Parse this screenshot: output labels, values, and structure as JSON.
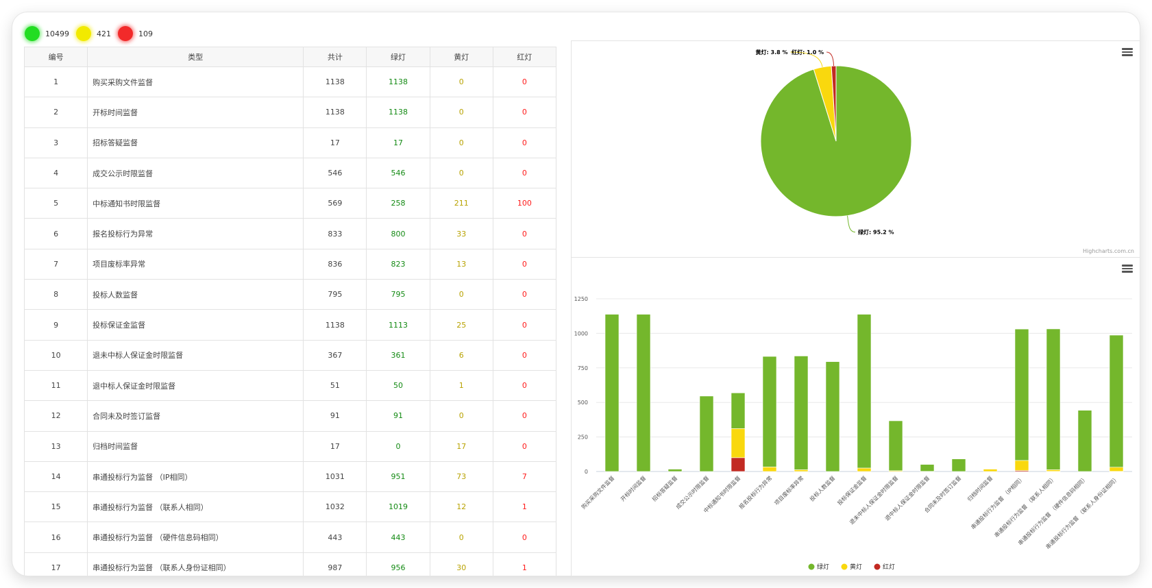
{
  "summary": {
    "green": {
      "count": "10499",
      "color": "#22dd22"
    },
    "yellow": {
      "count": "421",
      "color": "#f2ea00"
    },
    "red": {
      "count": "109",
      "color": "#f22a2a"
    }
  },
  "table": {
    "headers": [
      "编号",
      "类型",
      "共计",
      "绿灯",
      "黄灯",
      "红灯"
    ],
    "rows": [
      {
        "no": "1",
        "type": "购买采购文件监督",
        "total": "1138",
        "green": "1138",
        "yellow": "0",
        "red": "0"
      },
      {
        "no": "2",
        "type": "开标时间监督",
        "total": "1138",
        "green": "1138",
        "yellow": "0",
        "red": "0"
      },
      {
        "no": "3",
        "type": "招标答疑监督",
        "total": "17",
        "green": "17",
        "yellow": "0",
        "red": "0"
      },
      {
        "no": "4",
        "type": "成交公示时限监督",
        "total": "546",
        "green": "546",
        "yellow": "0",
        "red": "0"
      },
      {
        "no": "5",
        "type": "中标通知书时限监督",
        "total": "569",
        "green": "258",
        "yellow": "211",
        "red": "100"
      },
      {
        "no": "6",
        "type": "报名投标行为异常",
        "total": "833",
        "green": "800",
        "yellow": "33",
        "red": "0"
      },
      {
        "no": "7",
        "type": "项目废标率异常",
        "total": "836",
        "green": "823",
        "yellow": "13",
        "red": "0"
      },
      {
        "no": "8",
        "type": "投标人数监督",
        "total": "795",
        "green": "795",
        "yellow": "0",
        "red": "0"
      },
      {
        "no": "9",
        "type": "投标保证金监督",
        "total": "1138",
        "green": "1113",
        "yellow": "25",
        "red": "0"
      },
      {
        "no": "10",
        "type": "退未中标人保证金时限监督",
        "total": "367",
        "green": "361",
        "yellow": "6",
        "red": "0"
      },
      {
        "no": "11",
        "type": "退中标人保证金时限监督",
        "total": "51",
        "green": "50",
        "yellow": "1",
        "red": "0"
      },
      {
        "no": "12",
        "type": "合同未及时签订监督",
        "total": "91",
        "green": "91",
        "yellow": "0",
        "red": "0"
      },
      {
        "no": "13",
        "type": "归档时间监督",
        "total": "17",
        "green": "0",
        "yellow": "17",
        "red": "0"
      },
      {
        "no": "14",
        "type": "串通投标行为监督 （IP相同）",
        "total": "1031",
        "green": "951",
        "yellow": "73",
        "red": "7"
      },
      {
        "no": "15",
        "type": "串通投标行为监督 （联系人相同）",
        "total": "1032",
        "green": "1019",
        "yellow": "12",
        "red": "1"
      },
      {
        "no": "16",
        "type": "串通投标行为监督 （硬件信息码相同）",
        "total": "443",
        "green": "443",
        "yellow": "0",
        "red": "0"
      },
      {
        "no": "17",
        "type": "串通投标行为监督 （联系人身份证相同）",
        "total": "987",
        "green": "956",
        "yellow": "30",
        "red": "1"
      }
    ]
  },
  "chart_data": [
    {
      "type": "pie",
      "slices": [
        {
          "label": "绿灯: 95.2 %",
          "value": 95.2,
          "color": "#74b72c"
        },
        {
          "label": "黄灯: 3.8 %",
          "value": 3.8,
          "color": "#f9d80e"
        },
        {
          "label": "红灯: 1.0 %",
          "value": 1.0,
          "color": "#c22a22"
        }
      ],
      "credits": "Highcharts.com.cn"
    },
    {
      "type": "bar",
      "stacked": true,
      "categories": [
        "购买采购文件监督",
        "开标时间监督",
        "招标答疑监督",
        "成交公示时限监督",
        "中标通知书时限监督",
        "报名投标行为异常",
        "项目废标率异常",
        "投标人数监督",
        "投标保证金监督",
        "退未中标人保证金时限监督",
        "退中标人保证金时限监督",
        "合同未及时签订监督",
        "归档时间监督",
        "串通投标行为监督 （IP相同）",
        "串通投标行为监督 （联系人相同）",
        "串通投标行为监督 （硬件信息码相同）",
        "串通投标行为监督 （联系人身份证相同）"
      ],
      "series": [
        {
          "name": "绿灯",
          "color": "#74b72c",
          "values": [
            1138,
            1138,
            17,
            546,
            258,
            800,
            823,
            795,
            1113,
            361,
            50,
            91,
            0,
            951,
            1019,
            443,
            956
          ]
        },
        {
          "name": "黄灯",
          "color": "#f9d80e",
          "values": [
            0,
            0,
            0,
            0,
            211,
            33,
            13,
            0,
            25,
            6,
            1,
            0,
            17,
            73,
            12,
            0,
            30
          ]
        },
        {
          "name": "红灯",
          "color": "#c22a22",
          "values": [
            0,
            0,
            0,
            0,
            100,
            0,
            0,
            0,
            0,
            0,
            0,
            0,
            0,
            7,
            1,
            0,
            1
          ]
        }
      ],
      "yticks": [
        "0",
        "250",
        "500",
        "750",
        "1000",
        "1250"
      ],
      "ylim": [
        0,
        1250
      ],
      "grid": true,
      "legend_position": "bottom-center"
    }
  ]
}
